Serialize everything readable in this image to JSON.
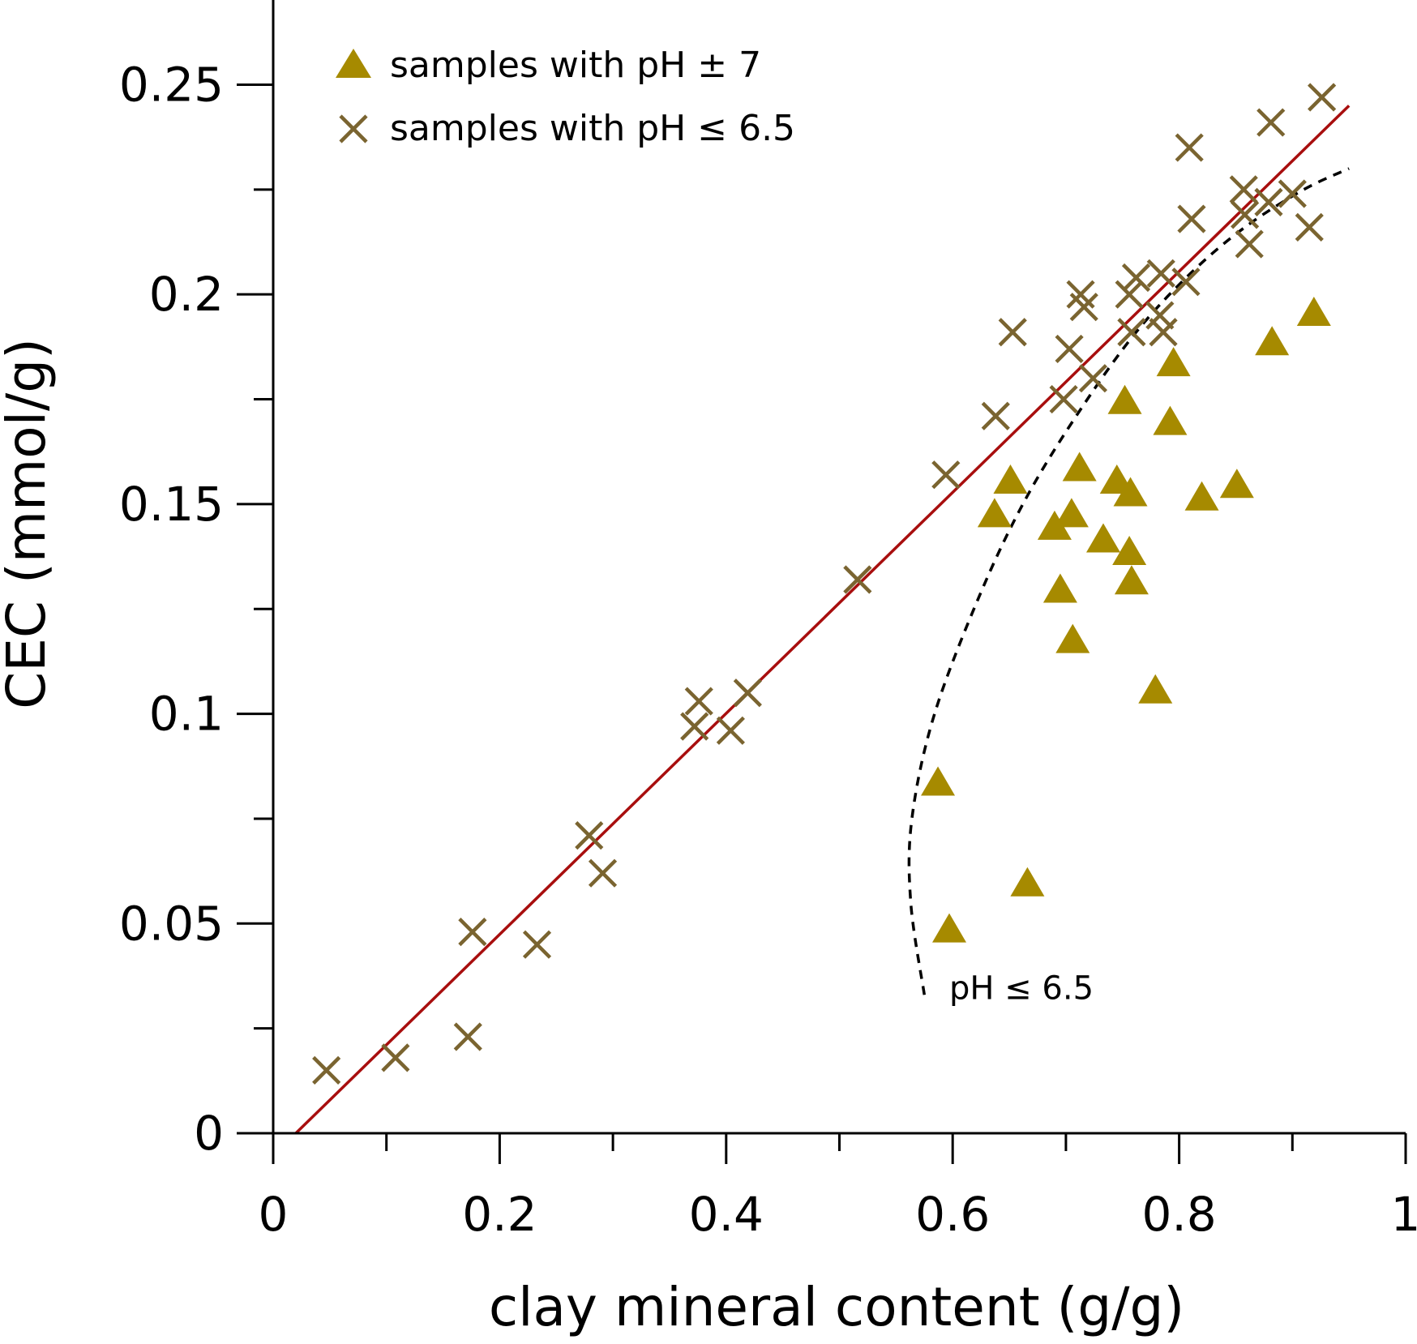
{
  "chart_data": {
    "type": "scatter",
    "xlabel": "clay mineral content (g/g)",
    "ylabel": "CEC (mmol/g)",
    "xlim": [
      0,
      1
    ],
    "ylim": [
      0,
      0.27
    ],
    "x_ticks": [
      0,
      0.2,
      0.4,
      0.6,
      0.8,
      1
    ],
    "x_tick_labels": [
      "0",
      "0.2",
      "0.4",
      "0.6",
      "0.8",
      "1"
    ],
    "x_minor_ticks": [
      0.1,
      0.3,
      0.5,
      0.7,
      0.9
    ],
    "y_ticks": [
      0,
      0.05,
      0.1,
      0.15,
      0.2,
      0.25
    ],
    "y_tick_labels": [
      "0",
      "0.05",
      "0.1",
      "0.15",
      "0.2",
      "0.25"
    ],
    "y_minor_ticks": [
      0.025,
      0.075,
      0.125,
      0.175,
      0.225
    ],
    "grid": false,
    "legend_position": "top-left",
    "colors": {
      "triangle": "#a68a00",
      "cross": "#7a6430",
      "fit_line": "#a80e0e",
      "dashed_curve": "#000000"
    },
    "series": [
      {
        "name": "samples with pH ± 7",
        "marker": "triangle",
        "points": [
          [
            0.587,
            0.083
          ],
          [
            0.597,
            0.048
          ],
          [
            0.666,
            0.059
          ],
          [
            0.637,
            0.147
          ],
          [
            0.651,
            0.155
          ],
          [
            0.69,
            0.144
          ],
          [
            0.695,
            0.129
          ],
          [
            0.706,
            0.117
          ],
          [
            0.705,
            0.147
          ],
          [
            0.712,
            0.158
          ],
          [
            0.733,
            0.141
          ],
          [
            0.745,
            0.155
          ],
          [
            0.752,
            0.174
          ],
          [
            0.757,
            0.152
          ],
          [
            0.756,
            0.138
          ],
          [
            0.758,
            0.131
          ],
          [
            0.779,
            0.105
          ],
          [
            0.792,
            0.169
          ],
          [
            0.795,
            0.183
          ],
          [
            0.82,
            0.151
          ],
          [
            0.851,
            0.154
          ],
          [
            0.882,
            0.188
          ],
          [
            0.919,
            0.195
          ]
        ]
      },
      {
        "name": "samples with pH ≤ 6.5",
        "marker": "cross",
        "points": [
          [
            0.047,
            0.015
          ],
          [
            0.108,
            0.018
          ],
          [
            0.172,
            0.023
          ],
          [
            0.176,
            0.048
          ],
          [
            0.233,
            0.045
          ],
          [
            0.279,
            0.071
          ],
          [
            0.291,
            0.062
          ],
          [
            0.372,
            0.097
          ],
          [
            0.376,
            0.103
          ],
          [
            0.404,
            0.096
          ],
          [
            0.419,
            0.105
          ],
          [
            0.516,
            0.132
          ],
          [
            0.594,
            0.157
          ],
          [
            0.638,
            0.171
          ],
          [
            0.653,
            0.191
          ],
          [
            0.698,
            0.175
          ],
          [
            0.703,
            0.187
          ],
          [
            0.713,
            0.2
          ],
          [
            0.716,
            0.197
          ],
          [
            0.724,
            0.18
          ],
          [
            0.756,
            0.2
          ],
          [
            0.758,
            0.191
          ],
          [
            0.762,
            0.204
          ],
          [
            0.783,
            0.195
          ],
          [
            0.784,
            0.205
          ],
          [
            0.786,
            0.191
          ],
          [
            0.806,
            0.203
          ],
          [
            0.809,
            0.235
          ],
          [
            0.811,
            0.218
          ],
          [
            0.857,
            0.225
          ],
          [
            0.858,
            0.219
          ],
          [
            0.862,
            0.212
          ],
          [
            0.879,
            0.222
          ],
          [
            0.881,
            0.241
          ],
          [
            0.9,
            0.224
          ],
          [
            0.915,
            0.216
          ],
          [
            0.926,
            0.247
          ]
        ]
      }
    ],
    "fit_line": {
      "from": [
        0.02,
        0
      ],
      "to": [
        0.95,
        0.245
      ]
    },
    "dashed_curve": {
      "points": [
        [
          0.575,
          0.033
        ],
        [
          0.563,
          0.055
        ],
        [
          0.564,
          0.075
        ],
        [
          0.584,
          0.1
        ],
        [
          0.625,
          0.129
        ],
        [
          0.666,
          0.152
        ],
        [
          0.714,
          0.173
        ],
        [
          0.762,
          0.191
        ],
        [
          0.81,
          0.205
        ],
        [
          0.858,
          0.216
        ],
        [
          0.91,
          0.225
        ],
        [
          0.95,
          0.23
        ]
      ]
    },
    "annotations": [
      {
        "text": "pH ≤ 6.5",
        "x": 0.597,
        "y": 0.032
      }
    ]
  }
}
